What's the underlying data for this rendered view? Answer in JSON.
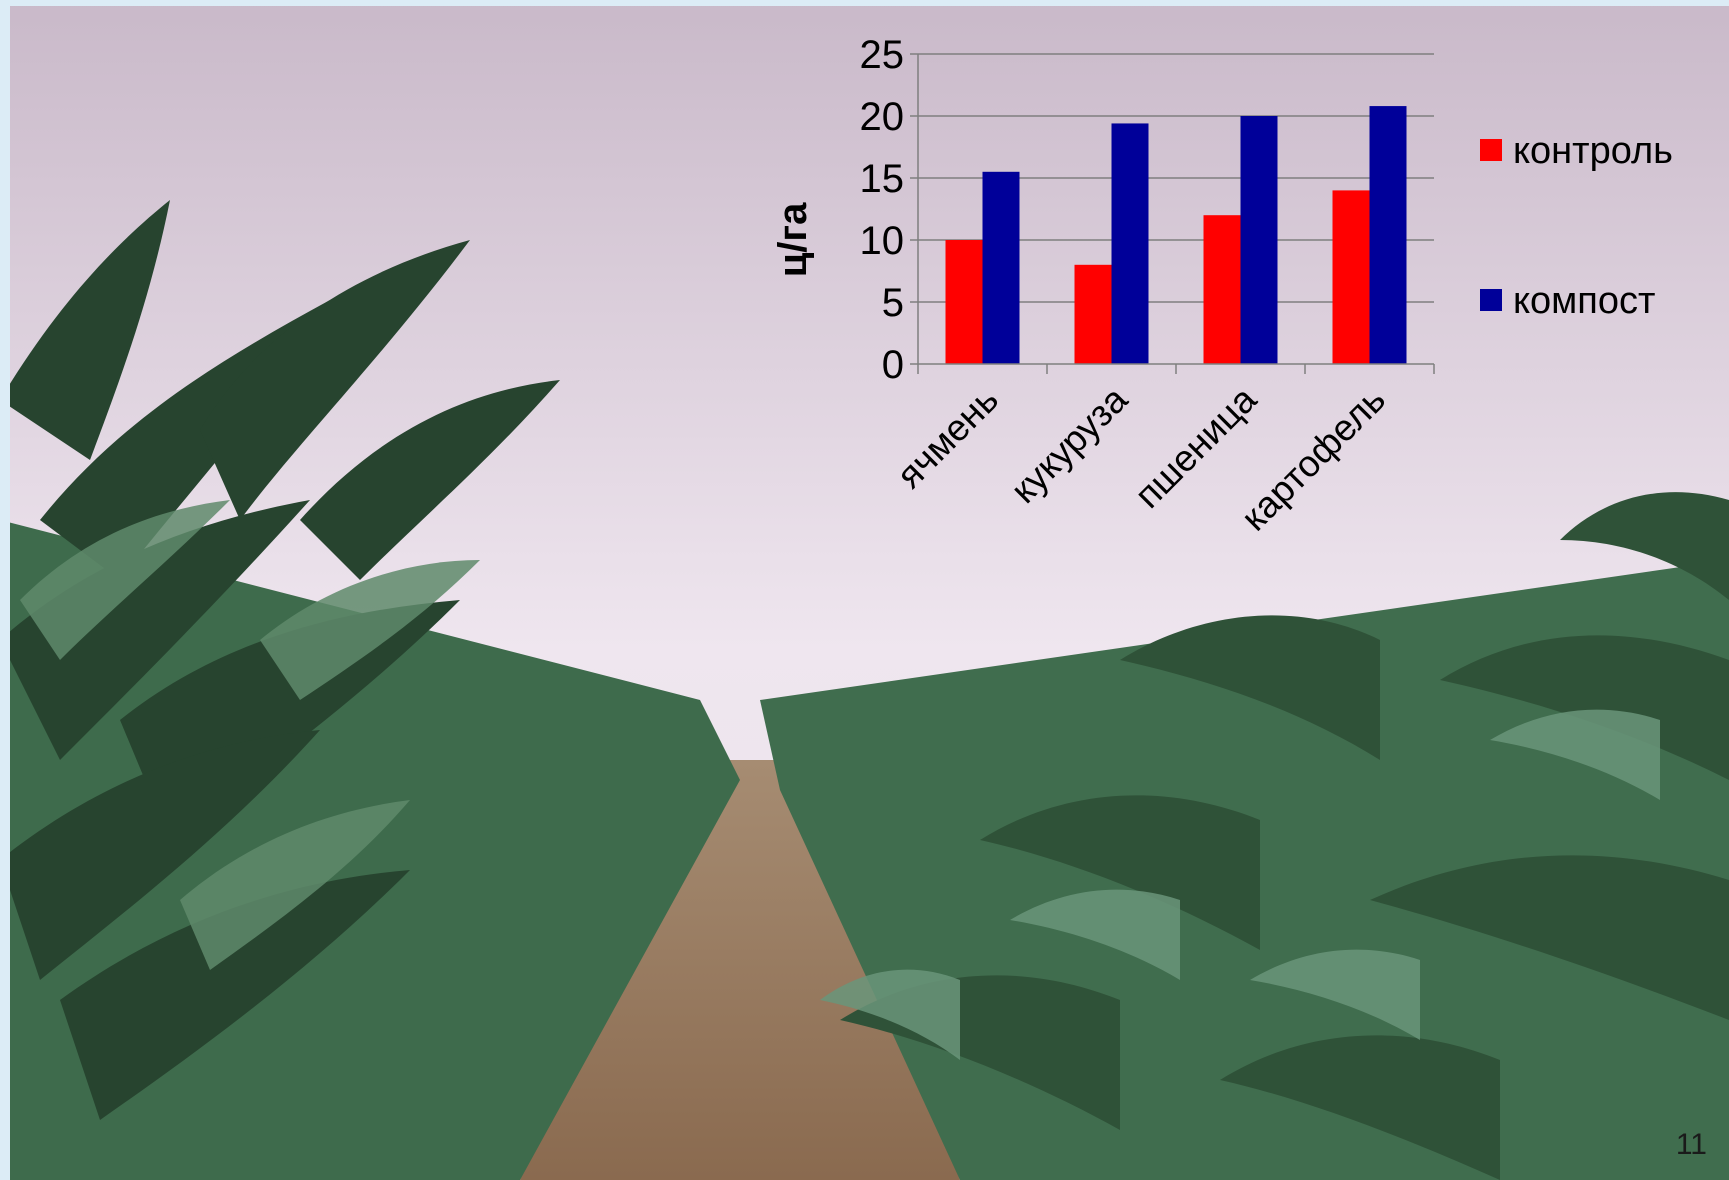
{
  "slide": {
    "number": "11"
  },
  "photo": {
    "subject": "corn-field",
    "colors": {
      "sky_top": "#c9b9c9",
      "sky_bottom": "#efe6ef",
      "plant_dark": "#27442f",
      "plant_mid": "#3e6b4c",
      "plant_light": "#5f8a6b",
      "soil": "#9b7c5f",
      "frame": "#dcecf6"
    }
  },
  "chart_data": {
    "type": "bar",
    "title": "",
    "xlabel": "",
    "ylabel": "ц/га",
    "ylim": [
      0,
      25
    ],
    "yticks": [
      0,
      5,
      10,
      15,
      20,
      25
    ],
    "categories": [
      "ячмень",
      "кукуруза",
      "пшеница",
      "картофель"
    ],
    "series": [
      {
        "name": "контроль",
        "color": "#ff0000",
        "values": [
          10,
          8,
          12,
          14
        ]
      },
      {
        "name": "компост",
        "color": "#000099",
        "values": [
          15.5,
          19.4,
          20,
          20.8
        ]
      }
    ],
    "grid": true,
    "legend": "right"
  }
}
